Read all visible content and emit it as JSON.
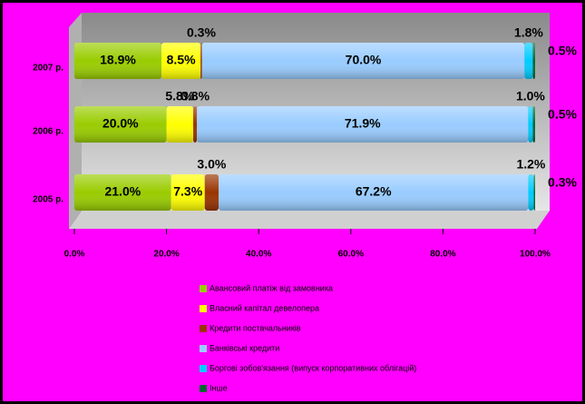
{
  "chart_data": {
    "type": "stacked-bar-horizontal",
    "categories": [
      "2007 р.",
      "2006 р.",
      "2005 р."
    ],
    "series": [
      {
        "name": "Авансовий платіж від замовника",
        "color": "#99cc00",
        "values": [
          18.9,
          20.0,
          21.0
        ],
        "value_labels": [
          "18.9%",
          "20.0%",
          "21.0%"
        ]
      },
      {
        "name": "Власний капітал девелопера",
        "color": "#ffff00",
        "values": [
          8.5,
          5.8,
          7.3
        ],
        "value_labels": [
          "8.5%",
          "5.8%",
          "7.3%"
        ]
      },
      {
        "name": "Кредити постачальників",
        "color": "#993300",
        "values": [
          0.3,
          0.8,
          3.0
        ],
        "value_labels": [
          "0.3%",
          "0.8%",
          "3.0%"
        ]
      },
      {
        "name": "Банківські кредити",
        "color": "#99ccff",
        "values": [
          70.0,
          71.9,
          67.2
        ],
        "value_labels": [
          "70.0%",
          "71.9%",
          "67.2%"
        ]
      },
      {
        "name": "Боргові зобов'язання (випуск корпоративних облігацій)",
        "color": "#00ccff",
        "values": [
          1.8,
          1.0,
          1.2
        ],
        "value_labels": [
          "1.8%",
          "1.0%",
          "1.2%"
        ]
      },
      {
        "name": "Інше",
        "color": "#006633",
        "values": [
          0.5,
          0.5,
          0.3
        ],
        "value_labels": [
          "0.5%",
          "0.5%",
          "0.3%"
        ]
      }
    ],
    "xlim": [
      0,
      100
    ],
    "xticks": [
      {
        "value": 0,
        "label": "0.0%"
      },
      {
        "value": 20,
        "label": "20.0%"
      },
      {
        "value": 40,
        "label": "40.0%"
      },
      {
        "value": 60,
        "label": "60.0%"
      },
      {
        "value": 80,
        "label": "80.0%"
      },
      {
        "value": 100,
        "label": "100.0%"
      }
    ]
  }
}
